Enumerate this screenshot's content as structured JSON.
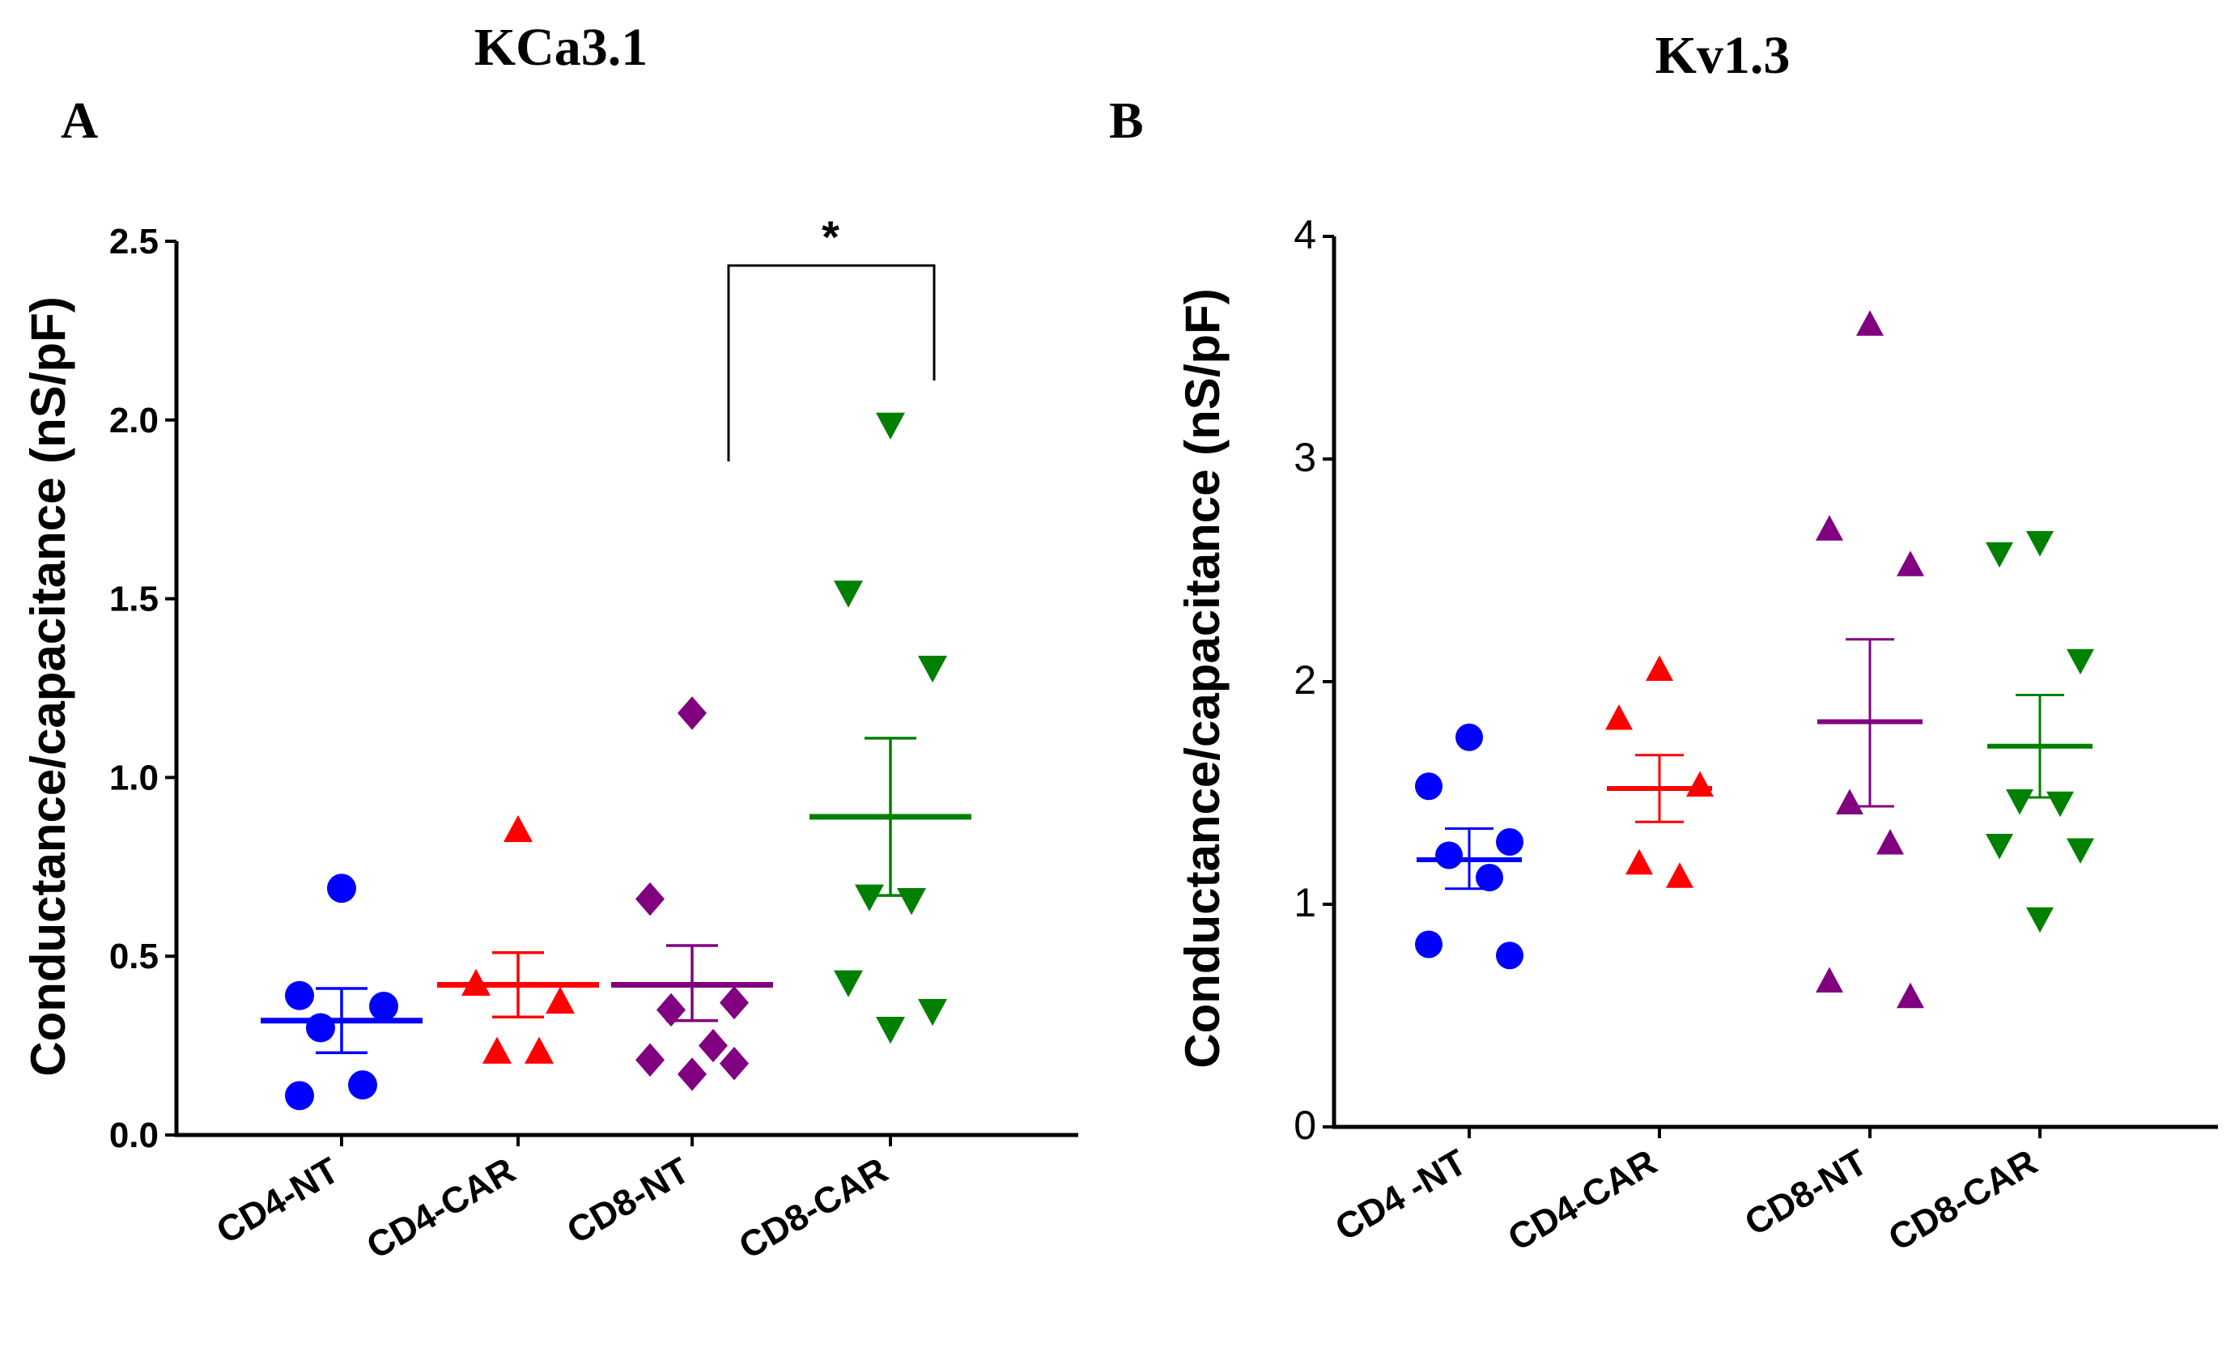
{
  "chart_data": [
    {
      "panel": "A",
      "title": "KCa3.1",
      "type": "scatter",
      "ylabel": "Conductance/capacitance (nS/pF)",
      "ylim": [
        0,
        2.5
      ],
      "yticks": [
        "0.0",
        "0.5",
        "1.0",
        "1.5",
        "2.0",
        "2.5"
      ],
      "categories": [
        "CD4-NT",
        "CD4-CAR",
        "CD8-NT",
        "CD8-CAR"
      ],
      "series": [
        {
          "name": "CD4-NT",
          "color": "#0000ff",
          "marker": "circle",
          "points": [
            0.69,
            0.39,
            0.36,
            0.3,
            0.14,
            0.11
          ],
          "mean": 0.32,
          "sem_low": 0.23,
          "sem_high": 0.41
        },
        {
          "name": "CD4-CAR",
          "color": "#ff0000",
          "marker": "triangle-up",
          "points": [
            0.85,
            0.42,
            0.37,
            0.23,
            0.23
          ],
          "mean": 0.42,
          "sem_low": 0.33,
          "sem_high": 0.51
        },
        {
          "name": "CD8-NT",
          "color": "#800080",
          "marker": "diamond",
          "points": [
            1.18,
            0.66,
            0.37,
            0.35,
            0.25,
            0.21,
            0.2,
            0.17
          ],
          "mean": 0.42,
          "sem_low": 0.32,
          "sem_high": 0.53
        },
        {
          "name": "CD8-CAR",
          "color": "#008000",
          "marker": "triangle-down",
          "points": [
            1.99,
            1.52,
            1.31,
            0.67,
            0.66,
            0.43,
            0.35,
            0.3
          ],
          "mean": 0.89,
          "sem_low": 0.67,
          "sem_high": 1.11
        }
      ],
      "significance": {
        "from": "CD8-NT",
        "to": "CD8-CAR",
        "label": "*"
      }
    },
    {
      "panel": "B",
      "title": "Kv1.3",
      "type": "scatter",
      "ylabel": "Conductance/capacitance (nS/pF)",
      "ylim": [
        0,
        4
      ],
      "yticks": [
        "0",
        "1",
        "2",
        "3",
        "4"
      ],
      "categories": [
        "CD4 -NT",
        "CD4-CAR",
        "CD8-NT",
        "CD8-CAR"
      ],
      "series": [
        {
          "name": "CD4 -NT",
          "color": "#0000ff",
          "marker": "circle",
          "points": [
            1.75,
            1.53,
            1.28,
            1.22,
            1.12,
            0.82,
            0.77
          ],
          "mean": 1.2,
          "sem_low": 1.07,
          "sem_high": 1.34
        },
        {
          "name": "CD4-CAR",
          "color": "#ff0000",
          "marker": "triangle-up",
          "points": [
            2.05,
            1.83,
            1.53,
            1.18,
            1.12
          ],
          "mean": 1.52,
          "sem_low": 1.37,
          "sem_high": 1.67
        },
        {
          "name": "CD8-NT",
          "color": "#800080",
          "marker": "triangle-up",
          "points": [
            3.6,
            2.68,
            2.52,
            1.45,
            1.27,
            0.65,
            0.58
          ],
          "mean": 1.82,
          "sem_low": 1.44,
          "sem_high": 2.19
        },
        {
          "name": "CD8-CAR",
          "color": "#008000",
          "marker": "triangle-down",
          "points": [
            2.63,
            2.58,
            2.1,
            1.47,
            1.46,
            1.27,
            1.25,
            0.94
          ],
          "mean": 1.71,
          "sem_low": 1.48,
          "sem_high": 1.94
        }
      ]
    }
  ]
}
